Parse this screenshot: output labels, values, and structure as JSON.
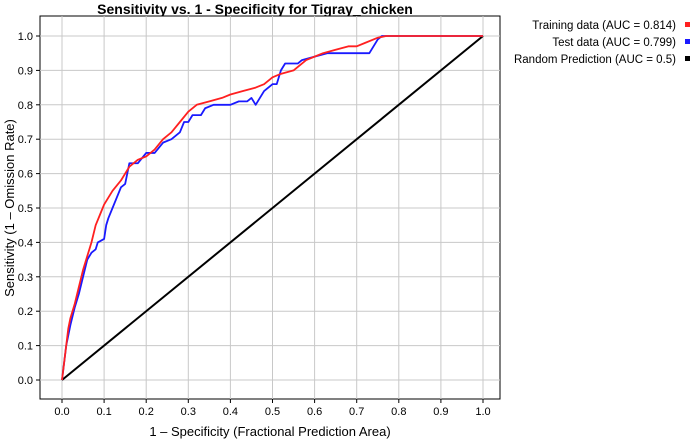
{
  "chart_data": {
    "type": "line",
    "title": "Sensitivity vs. 1 - Specificity for Tigray_chicken",
    "xlabel": "1 – Specificity (Fractional Prediction Area)",
    "ylabel": "Sensitivity (1 – Omission Rate)",
    "xlim": [
      0,
      1
    ],
    "ylim": [
      0,
      1
    ],
    "x_ticks": [
      "0.0",
      "0.1",
      "0.2",
      "0.3",
      "0.4",
      "0.5",
      "0.6",
      "0.7",
      "0.8",
      "0.9",
      "1.0"
    ],
    "y_ticks": [
      "0.0",
      "0.1",
      "0.2",
      "0.3",
      "0.4",
      "0.5",
      "0.6",
      "0.7",
      "0.8",
      "0.9",
      "1.0"
    ],
    "grid": true,
    "legend_position": "outside-right-top",
    "series": [
      {
        "name": "Training data (AUC = 0.814)",
        "color": "#ff2020",
        "points": [
          [
            0,
            0
          ],
          [
            0.005,
            0.05
          ],
          [
            0.01,
            0.1
          ],
          [
            0.015,
            0.15
          ],
          [
            0.02,
            0.18
          ],
          [
            0.03,
            0.22
          ],
          [
            0.04,
            0.27
          ],
          [
            0.05,
            0.32
          ],
          [
            0.06,
            0.36
          ],
          [
            0.07,
            0.4
          ],
          [
            0.08,
            0.45
          ],
          [
            0.09,
            0.48
          ],
          [
            0.1,
            0.51
          ],
          [
            0.12,
            0.55
          ],
          [
            0.14,
            0.58
          ],
          [
            0.16,
            0.62
          ],
          [
            0.18,
            0.64
          ],
          [
            0.2,
            0.65
          ],
          [
            0.22,
            0.67
          ],
          [
            0.24,
            0.7
          ],
          [
            0.26,
            0.72
          ],
          [
            0.28,
            0.75
          ],
          [
            0.3,
            0.78
          ],
          [
            0.32,
            0.8
          ],
          [
            0.35,
            0.81
          ],
          [
            0.38,
            0.82
          ],
          [
            0.4,
            0.83
          ],
          [
            0.43,
            0.84
          ],
          [
            0.46,
            0.85
          ],
          [
            0.48,
            0.86
          ],
          [
            0.5,
            0.88
          ],
          [
            0.52,
            0.89
          ],
          [
            0.55,
            0.9
          ],
          [
            0.58,
            0.93
          ],
          [
            0.6,
            0.94
          ],
          [
            0.62,
            0.95
          ],
          [
            0.65,
            0.96
          ],
          [
            0.68,
            0.97
          ],
          [
            0.7,
            0.97
          ],
          [
            0.72,
            0.98
          ],
          [
            0.74,
            0.99
          ],
          [
            0.75,
            0.995
          ],
          [
            0.77,
            1.0
          ],
          [
            0.8,
            1.0
          ],
          [
            1.0,
            1.0
          ]
        ]
      },
      {
        "name": "Test data (AUC = 0.799)",
        "color": "#1a1aff",
        "points": [
          [
            0,
            0
          ],
          [
            0.005,
            0.05
          ],
          [
            0.01,
            0.1
          ],
          [
            0.02,
            0.16
          ],
          [
            0.03,
            0.21
          ],
          [
            0.04,
            0.25
          ],
          [
            0.05,
            0.3
          ],
          [
            0.06,
            0.35
          ],
          [
            0.07,
            0.37
          ],
          [
            0.08,
            0.38
          ],
          [
            0.085,
            0.4
          ],
          [
            0.1,
            0.41
          ],
          [
            0.105,
            0.45
          ],
          [
            0.11,
            0.47
          ],
          [
            0.12,
            0.5
          ],
          [
            0.13,
            0.53
          ],
          [
            0.14,
            0.56
          ],
          [
            0.15,
            0.57
          ],
          [
            0.16,
            0.63
          ],
          [
            0.18,
            0.63
          ],
          [
            0.2,
            0.66
          ],
          [
            0.22,
            0.66
          ],
          [
            0.24,
            0.69
          ],
          [
            0.26,
            0.7
          ],
          [
            0.28,
            0.72
          ],
          [
            0.29,
            0.75
          ],
          [
            0.3,
            0.75
          ],
          [
            0.31,
            0.77
          ],
          [
            0.33,
            0.77
          ],
          [
            0.34,
            0.79
          ],
          [
            0.36,
            0.8
          ],
          [
            0.38,
            0.8
          ],
          [
            0.4,
            0.8
          ],
          [
            0.42,
            0.81
          ],
          [
            0.44,
            0.81
          ],
          [
            0.45,
            0.82
          ],
          [
            0.46,
            0.8
          ],
          [
            0.47,
            0.82
          ],
          [
            0.48,
            0.84
          ],
          [
            0.5,
            0.86
          ],
          [
            0.51,
            0.86
          ],
          [
            0.52,
            0.9
          ],
          [
            0.53,
            0.92
          ],
          [
            0.55,
            0.92
          ],
          [
            0.56,
            0.92
          ],
          [
            0.57,
            0.93
          ],
          [
            0.6,
            0.94
          ],
          [
            0.63,
            0.95
          ],
          [
            0.65,
            0.95
          ],
          [
            0.68,
            0.95
          ],
          [
            0.7,
            0.95
          ],
          [
            0.73,
            0.95
          ],
          [
            0.74,
            0.97
          ],
          [
            0.75,
            0.99
          ],
          [
            0.76,
            1.0
          ],
          [
            0.8,
            1.0
          ],
          [
            1.0,
            1.0
          ]
        ]
      },
      {
        "name": "Random Prediction (AUC = 0.5)",
        "color": "#000000",
        "points": [
          [
            0,
            0
          ],
          [
            1,
            1
          ]
        ]
      }
    ]
  }
}
